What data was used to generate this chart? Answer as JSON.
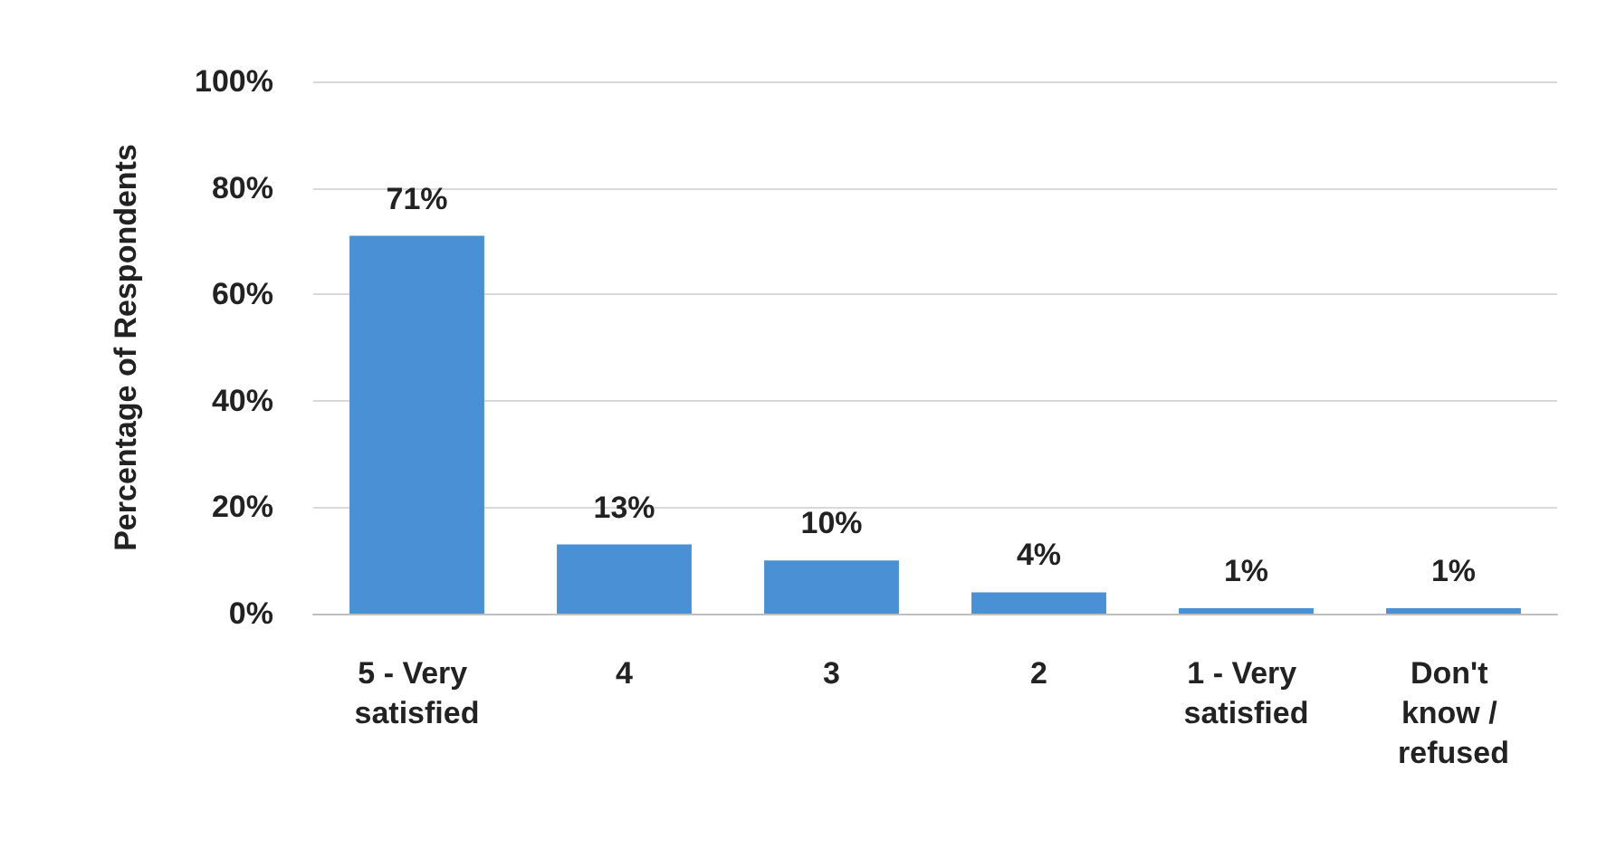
{
  "chart_data": {
    "type": "bar",
    "ylabel": "Percentage of Respondents",
    "categories": [
      "5 - Very satisfied",
      "4",
      "3",
      "2",
      "1 - Very satisfied",
      "Don't know / refused"
    ],
    "values": [
      71,
      13,
      10,
      4,
      1,
      1
    ],
    "value_labels": [
      "71%",
      "13%",
      "10%",
      "4%",
      "1%",
      "1%"
    ],
    "color": "#4a90d4",
    "ylim": [
      0,
      100
    ],
    "yticks": [
      {
        "value": 0,
        "label": "0%"
      },
      {
        "value": 20,
        "label": "20%"
      },
      {
        "value": 40,
        "label": "40%"
      },
      {
        "value": 60,
        "label": "60%"
      },
      {
        "value": 80,
        "label": "80%"
      },
      {
        "value": 100,
        "label": "100%"
      }
    ],
    "grid": "y"
  }
}
